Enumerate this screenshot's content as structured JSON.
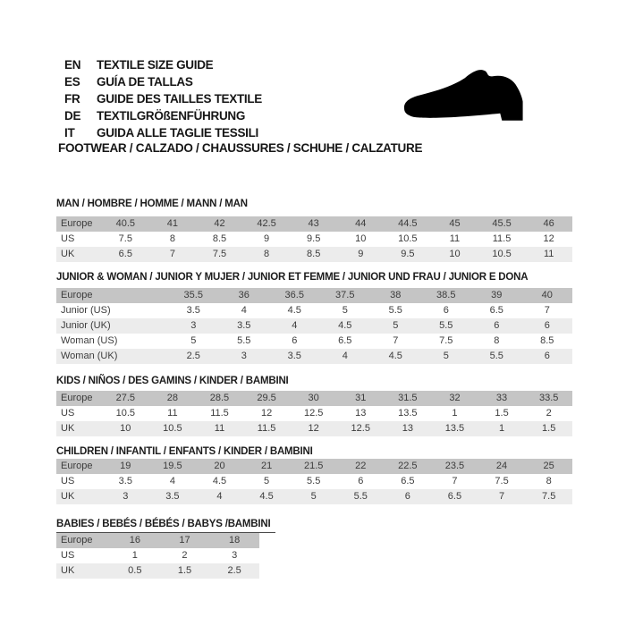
{
  "header": {
    "languages": [
      {
        "code": "EN",
        "text": "TEXTILE SIZE GUIDE"
      },
      {
        "code": "ES",
        "text": "GUÍA DE TALLAS"
      },
      {
        "code": "FR",
        "text": "GUIDE DES TAILLES TEXTILE"
      },
      {
        "code": "DE",
        "text": "TEXTILGRÖßENFÜHRUNG"
      },
      {
        "code": "IT",
        "text": "GUIDA ALLE TAGLIE TESSILI"
      }
    ],
    "category_line": "FOOTWEAR / CALZADO / CHAUSSURES / SCHUHE / CALZATURE",
    "shoe_icon": "dress-shoe-silhouette"
  },
  "size_tables": [
    {
      "title": "MAN / HOMBRE / HOMME / MANN / MAN",
      "layout": "wide",
      "underlined_title": false,
      "rows": [
        {
          "label": "Europe",
          "values": [
            "40.5",
            "41",
            "42",
            "42.5",
            "43",
            "44",
            "44.5",
            "45",
            "45.5",
            "46"
          ]
        },
        {
          "label": "US",
          "values": [
            "7.5",
            "8",
            "8.5",
            "9",
            "9.5",
            "10",
            "10.5",
            "11",
            "11.5",
            "12"
          ]
        },
        {
          "label": "UK",
          "values": [
            "6.5",
            "7",
            "7.5",
            "8",
            "8.5",
            "9",
            "9.5",
            "10",
            "10.5",
            "11"
          ]
        }
      ]
    },
    {
      "title": "JUNIOR & WOMAN / JUNIOR Y MUJER / JUNIOR ET FEMME / JUNIOR UND FRAU / JUNIOR E DONA",
      "layout": "junior",
      "underlined_title": false,
      "rows": [
        {
          "label": "Europe",
          "values": [
            "35.5",
            "36",
            "36.5",
            "37.5",
            "38",
            "38.5",
            "39",
            "40"
          ]
        },
        {
          "label": "Junior (US)",
          "values": [
            "3.5",
            "4",
            "4.5",
            "5",
            "5.5",
            "6",
            "6.5",
            "7"
          ]
        },
        {
          "label": "Junior (UK)",
          "values": [
            "3",
            "3.5",
            "4",
            "4.5",
            "5",
            "5.5",
            "6",
            "6"
          ]
        },
        {
          "label": "Woman (US)",
          "values": [
            "5",
            "5.5",
            "6",
            "6.5",
            "7",
            "7.5",
            "8",
            "8.5"
          ]
        },
        {
          "label": "Woman (UK)",
          "values": [
            "2.5",
            "3",
            "3.5",
            "4",
            "4.5",
            "5",
            "5.5",
            "6"
          ]
        }
      ]
    },
    {
      "title": "KIDS / NIÑOS / DES GAMINS / KINDER / BAMBINI",
      "layout": "wide",
      "underlined_title": false,
      "rows": [
        {
          "label": "Europe",
          "values": [
            "27.5",
            "28",
            "28.5",
            "29.5",
            "30",
            "31",
            "31.5",
            "32",
            "33",
            "33.5"
          ]
        },
        {
          "label": "US",
          "values": [
            "10.5",
            "11",
            "11.5",
            "12",
            "12.5",
            "13",
            "13.5",
            "1",
            "1.5",
            "2"
          ]
        },
        {
          "label": "UK",
          "values": [
            "10",
            "10.5",
            "11",
            "11.5",
            "12",
            "12.5",
            "13",
            "13.5",
            "1",
            "1.5"
          ]
        }
      ]
    },
    {
      "title": "CHILDREN / INFANTIL / ENFANTS / KINDER / BAMBINI",
      "layout": "wide",
      "underlined_title": false,
      "rows": [
        {
          "label": "Europe",
          "values": [
            "19",
            "19.5",
            "20",
            "21",
            "21.5",
            "22",
            "22.5",
            "23.5",
            "24",
            "25"
          ]
        },
        {
          "label": "US",
          "values": [
            "3.5",
            "4",
            "4.5",
            "5",
            "5.5",
            "6",
            "6.5",
            "7",
            "7.5",
            "8"
          ]
        },
        {
          "label": "UK",
          "values": [
            "3",
            "3.5",
            "4",
            "4.5",
            "5",
            "5.5",
            "6",
            "6.5",
            "7",
            "7.5"
          ]
        }
      ]
    },
    {
      "title": "BABIES / BEBÉS / BÉBÉS / BABYS /BAMBINI",
      "layout": "babies",
      "underlined_title": true,
      "rows": [
        {
          "label": "Europe",
          "values": [
            "16",
            "17",
            "18"
          ]
        },
        {
          "label": "US",
          "values": [
            "1",
            "2",
            "3"
          ]
        },
        {
          "label": "UK",
          "values": [
            "0.5",
            "1.5",
            "2.5"
          ]
        }
      ]
    }
  ],
  "colors": {
    "header_row_bg": "#c5c5c5",
    "stripe_row_bg": "#ececec",
    "text": "#3c3c3c",
    "title_text": "#1d1d1d",
    "shoe": "#000000"
  }
}
